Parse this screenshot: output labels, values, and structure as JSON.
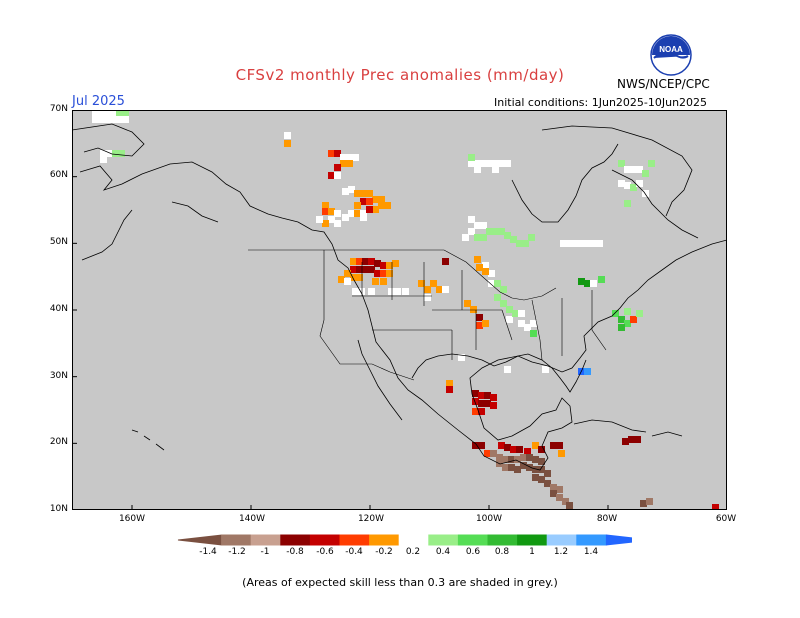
{
  "title": "CFSv2 monthly Prec anomalies (mm/day)",
  "month_label": "Jul 2025",
  "initial_conditions": "Initial conditions: 1Jun2025-10Jun2025",
  "agency": "NWS/NCEP/CPC",
  "logo_text": "NOAA",
  "footnote": "(Areas of expected skill less than 0.3 are shaded in grey.)",
  "map": {
    "lat_labels": [
      "70N",
      "60N",
      "50N",
      "40N",
      "30N",
      "20N",
      "10N"
    ],
    "lon_labels": [
      "160W",
      "140W",
      "120W",
      "100W",
      "80W",
      "60W"
    ],
    "background_color": "#c8c8c8"
  },
  "colorbar": {
    "labels": [
      "-1.4",
      "-1.2",
      "-1",
      "-0.8",
      "-0.6",
      "-0.4",
      "-0.2",
      "0.2",
      "0.4",
      "0.6",
      "0.8",
      "1",
      "1.2",
      "1.4"
    ],
    "colors": [
      "#7a5040",
      "#a07866",
      "#c8a090",
      "#8c0000",
      "#c40000",
      "#ff3c00",
      "#ff9900",
      "#ffffff",
      "#99ee88",
      "#55dd55",
      "#33bb33",
      "#119911",
      "#99ccff",
      "#3399ff",
      "#2266ff"
    ]
  }
}
